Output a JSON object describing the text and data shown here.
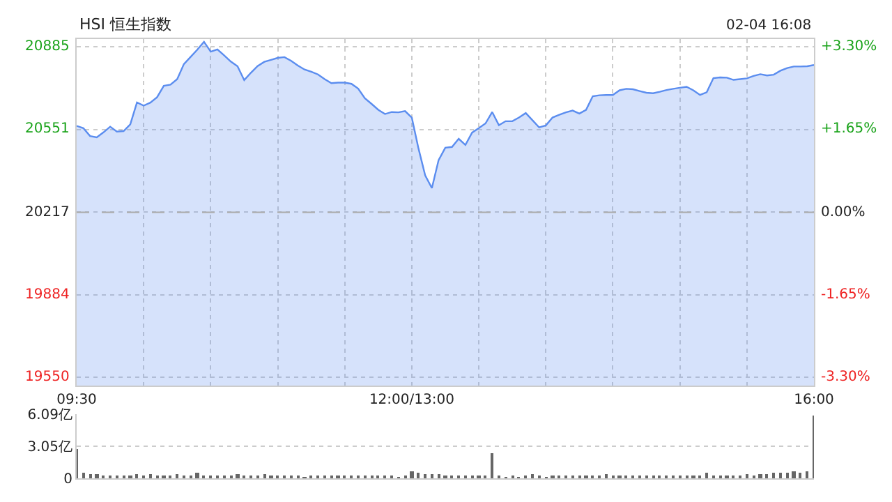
{
  "chart_data": [
    {
      "type": "area",
      "title": "HSI 恒生指数",
      "annotations": [
        "02-04 16:08"
      ],
      "categories": [
        "09:30",
        null,
        null,
        null,
        null,
        null,
        null,
        null,
        null,
        null,
        null,
        null,
        null,
        null,
        null,
        null,
        null,
        null,
        null,
        null,
        null,
        null,
        null,
        null,
        null,
        null,
        null,
        null,
        null,
        null,
        null,
        null,
        null,
        null,
        null,
        null,
        null,
        null,
        null,
        null,
        null,
        null,
        null,
        null,
        null,
        null,
        null,
        null,
        null,
        null,
        "12:00/13:00",
        null,
        null,
        null,
        null,
        null,
        null,
        null,
        null,
        null,
        null,
        null,
        null,
        null,
        null,
        null,
        null,
        null,
        null,
        null,
        null,
        null,
        null,
        null,
        null,
        null,
        null,
        null,
        null,
        null,
        null,
        null,
        null,
        null,
        null,
        null,
        null,
        null,
        null,
        null,
        null,
        null,
        null,
        null,
        null,
        null,
        null,
        null,
        null,
        null,
        null,
        null,
        null,
        null,
        null,
        null,
        null,
        null,
        null,
        null,
        "16:00"
      ],
      "series": [
        {
          "color": "#5b8def",
          "values": [
            20566,
            20557,
            20525,
            20520,
            20540,
            20563,
            20543,
            20545,
            20572,
            20661,
            20648,
            20660,
            20682,
            20728,
            20733,
            20755,
            20816,
            20845,
            20874,
            20906,
            20866,
            20875,
            20851,
            20826,
            20807,
            20751,
            20781,
            20808,
            20825,
            20833,
            20841,
            20844,
            20829,
            20810,
            20794,
            20785,
            20774,
            20755,
            20739,
            20741,
            20741,
            20736,
            20717,
            20678,
            20655,
            20631,
            20614,
            20622,
            20621,
            20626,
            20600,
            20475,
            20366,
            20315,
            20428,
            20478,
            20481,
            20514,
            20489,
            20539,
            20557,
            20576,
            20622,
            20569,
            20585,
            20585,
            20600,
            20618,
            20589,
            20560,
            20568,
            20600,
            20611,
            20621,
            20628,
            20616,
            20631,
            20686,
            20690,
            20691,
            20691,
            20710,
            20716,
            20714,
            20707,
            20700,
            20698,
            20704,
            20711,
            20716,
            20720,
            20724,
            20710,
            20691,
            20702,
            20759,
            20762,
            20761,
            20752,
            20755,
            20758,
            20768,
            20775,
            20770,
            20773,
            20789,
            20800,
            20806,
            20806,
            20807,
            20812
          ]
        }
      ],
      "ylim": [
        19517,
        20917
      ],
      "yticks": [
        19550,
        19884,
        20217,
        20551,
        20885
      ],
      "y2lim": [
        -3.46,
        3.46
      ],
      "y2ticks": [
        {
          "value": -3.3,
          "label": "-3.30%"
        },
        {
          "value": -1.65,
          "label": "-1.65%"
        },
        {
          "value": 0,
          "label": "0.00%"
        },
        {
          "value": 1.65,
          "label": "+1.65%"
        },
        {
          "value": 3.3,
          "label": "+3.30%"
        }
      ],
      "ref_lines": [
        {
          "axis": "y",
          "value": 20217,
          "color": "#aaaaaa",
          "line_style": "dashed"
        }
      ],
      "grid": true,
      "marker": "none",
      "line_style": "solid"
    },
    {
      "type": "bar",
      "color": "#666666",
      "categories": [
        null,
        null,
        null,
        null,
        null,
        null,
        null,
        null,
        null,
        null,
        null,
        null,
        null,
        null,
        null,
        null,
        null,
        null,
        null,
        null,
        null,
        null,
        null,
        null,
        null,
        null,
        null,
        null,
        null,
        null,
        null,
        null,
        null,
        null,
        null,
        null,
        null,
        null,
        null,
        null,
        null,
        null,
        null,
        null,
        null,
        null,
        null,
        null,
        null,
        null,
        null,
        null,
        null,
        null,
        null,
        null,
        null,
        null,
        null,
        null,
        null,
        null,
        null,
        null,
        null,
        null,
        null,
        null,
        null,
        null,
        null,
        null,
        null,
        null,
        null,
        null,
        null,
        null,
        null,
        null,
        null,
        null,
        null,
        null,
        null,
        null,
        null,
        null,
        null,
        null,
        null,
        null,
        null,
        null,
        null,
        null,
        null,
        null,
        null,
        null,
        null,
        null,
        null,
        null,
        null,
        null,
        null,
        null,
        null,
        null,
        null
      ],
      "values": [
        2.8,
        0.5,
        0.4,
        0.4,
        0.3,
        0.3,
        0.3,
        0.3,
        0.3,
        0.4,
        0.3,
        0.4,
        0.3,
        0.3,
        0.3,
        0.4,
        0.3,
        0.3,
        0.5,
        0.3,
        0.3,
        0.3,
        0.3,
        0.3,
        0.4,
        0.3,
        0.3,
        0.3,
        0.4,
        0.3,
        0.2,
        0.2,
        0.2,
        0.2,
        0.1,
        0.2,
        0.2,
        0.2,
        0.2,
        0.2,
        0.2,
        0.2,
        0.2,
        0.2,
        0.3,
        0.2,
        0.2,
        0.2,
        0.1,
        0.2,
        0.7,
        0.5,
        0.4,
        0.4,
        0.4,
        0.3,
        0.2,
        0.2,
        0.2,
        0.2,
        0.3,
        0.3,
        2.4,
        0.2,
        0.1,
        0.2,
        0.1,
        0.2,
        0.4,
        0.2,
        0.1,
        0.2,
        0.2,
        0.3,
        0.2,
        0.2,
        0.2,
        0.2,
        0.2,
        0.4,
        0.2,
        0.2,
        0.2,
        0.2,
        0.2,
        0.3,
        0.2,
        0.2,
        0.2,
        0.3,
        0.2,
        0.2,
        0.3,
        0.2,
        0.5,
        0.3,
        0.3,
        0.2,
        0.3,
        0.3,
        0.4,
        0.3,
        0.4,
        0.4,
        0.5,
        0.5,
        0.5,
        0.6,
        0.5,
        0.6,
        6.0
      ],
      "ylim": [
        0,
        6.09
      ],
      "yticks": [
        0,
        {
          "value": 3.05,
          "label": "3.05亿"
        },
        {
          "value": 6.09,
          "label": "6.09亿"
        }
      ],
      "grid": "y",
      "tick_labels": "y"
    }
  ]
}
